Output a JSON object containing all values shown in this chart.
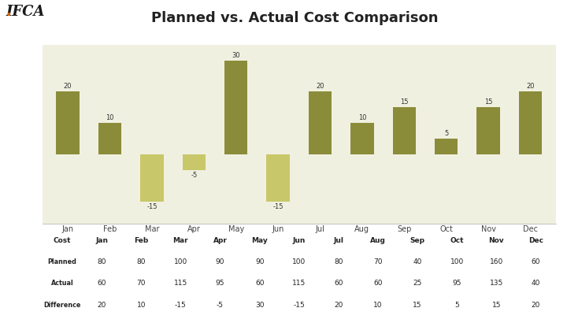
{
  "title": "Planned vs. Actual Cost Comparison",
  "months": [
    "Jan",
    "Feb",
    "Mar",
    "Apr",
    "May",
    "Jun",
    "Jul",
    "Aug",
    "Sep",
    "Oct",
    "Nov",
    "Dec"
  ],
  "differences": [
    20,
    10,
    -15,
    -5,
    30,
    -15,
    20,
    10,
    15,
    5,
    15,
    20
  ],
  "planned": [
    80,
    80,
    100,
    90,
    90,
    100,
    80,
    70,
    40,
    100,
    160,
    60
  ],
  "actual": [
    60,
    70,
    115,
    95,
    60,
    115,
    60,
    60,
    25,
    95,
    135,
    40
  ],
  "bar_color_pos": "#8b8c3a",
  "bar_color_neg": "#c8c86a",
  "bg_color": "#ffffff",
  "chart_bg": "#f0f0e0",
  "title_fontsize": 13,
  "grid_color": "#d0d0b8",
  "header_col_color": "#f5c518",
  "data_row_color": "#d8d8d8",
  "diff_row_data_color": "#d8d8d8",
  "ylim": [
    -22,
    35
  ],
  "logo_text": "IFCA"
}
